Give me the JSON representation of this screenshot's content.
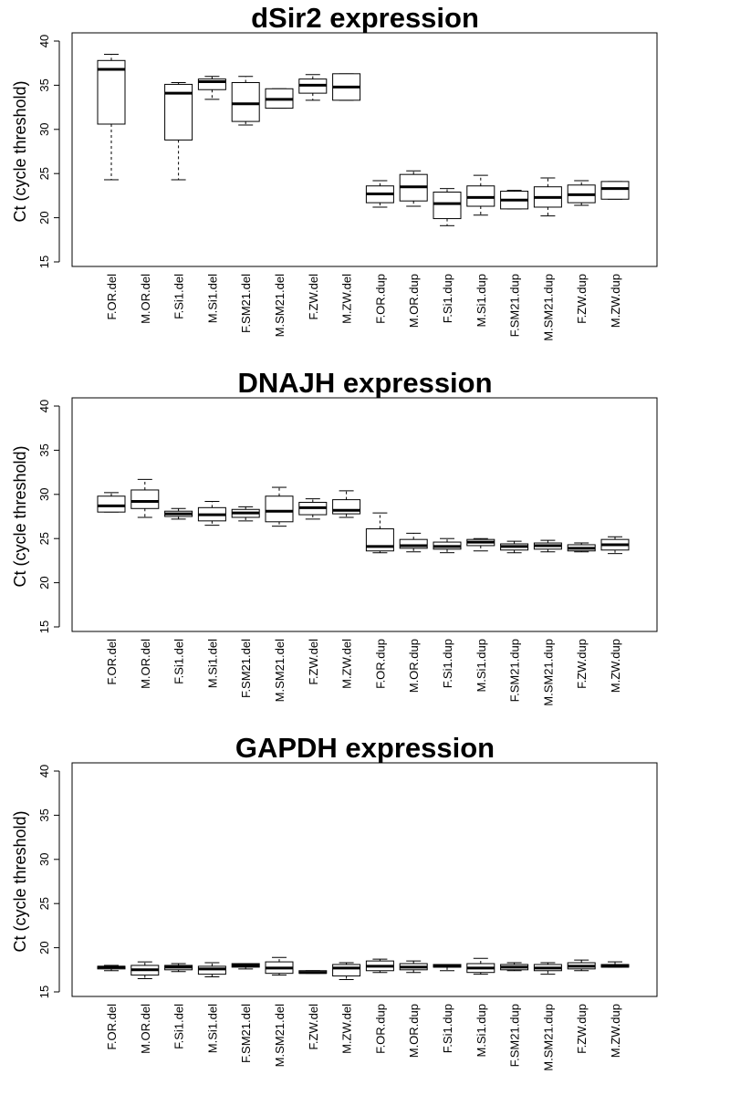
{
  "chart_data": [
    {
      "type": "boxplot",
      "title": "dSir2 expression",
      "ylabel": "Ct (cycle threshold)",
      "xlabel": "",
      "ylim": [
        15,
        40
      ],
      "yticks": [
        15,
        20,
        25,
        30,
        35,
        40
      ],
      "grid": false,
      "categories": [
        "F.OR.del",
        "M.OR.del",
        "F.Si1.del",
        "M.Si1.del",
        "F.SM21.del",
        "M.SM21.del",
        "F.ZW.del",
        "M.ZW.del",
        "F.OR.dup",
        "M.OR.dup",
        "F.Si1.dup",
        "M.Si1.dup",
        "F.SM21.dup",
        "M.SM21.dup",
        "F.ZW.dup",
        "M.ZW.dup"
      ],
      "boxes": [
        {
          "whisker_low": 24.3,
          "q1": 30.6,
          "median": 36.8,
          "q3": 37.8,
          "whisker_high": 38.5
        },
        null,
        {
          "whisker_low": 24.3,
          "q1": 28.8,
          "median": 34.1,
          "q3": 35.1,
          "whisker_high": 35.3
        },
        {
          "whisker_low": 33.4,
          "q1": 34.5,
          "median": 35.4,
          "q3": 35.7,
          "whisker_high": 36.0
        },
        {
          "whisker_low": 30.5,
          "q1": 30.9,
          "median": 32.9,
          "q3": 35.3,
          "whisker_high": 36.0
        },
        {
          "whisker_low": 32.4,
          "q1": 32.4,
          "median": 33.4,
          "q3": 34.6,
          "whisker_high": 34.6
        },
        {
          "whisker_low": 33.3,
          "q1": 34.1,
          "median": 35.0,
          "q3": 35.7,
          "whisker_high": 36.2
        },
        {
          "whisker_low": 33.3,
          "q1": 33.3,
          "median": 34.8,
          "q3": 36.3,
          "whisker_high": 36.3
        },
        {
          "whisker_low": 21.2,
          "q1": 21.7,
          "median": 22.7,
          "q3": 23.6,
          "whisker_high": 24.2
        },
        {
          "whisker_low": 21.3,
          "q1": 21.9,
          "median": 23.5,
          "q3": 24.9,
          "whisker_high": 25.3
        },
        {
          "whisker_low": 19.1,
          "q1": 19.9,
          "median": 21.6,
          "q3": 22.9,
          "whisker_high": 23.3
        },
        {
          "whisker_low": 20.3,
          "q1": 21.3,
          "median": 22.3,
          "q3": 23.6,
          "whisker_high": 24.8
        },
        {
          "whisker_low": 21.0,
          "q1": 21.0,
          "median": 22.0,
          "q3": 23.0,
          "whisker_high": 23.1
        },
        {
          "whisker_low": 20.2,
          "q1": 21.2,
          "median": 22.3,
          "q3": 23.5,
          "whisker_high": 24.5
        },
        {
          "whisker_low": 21.4,
          "q1": 21.7,
          "median": 22.6,
          "q3": 23.7,
          "whisker_high": 24.2
        },
        {
          "whisker_low": 22.1,
          "q1": 22.1,
          "median": 23.3,
          "q3": 24.1,
          "whisker_high": 24.1
        }
      ]
    },
    {
      "type": "boxplot",
      "title": "DNAJH expression",
      "ylabel": "Ct (cycle threshold)",
      "xlabel": "",
      "ylim": [
        15,
        40
      ],
      "yticks": [
        15,
        20,
        25,
        30,
        35,
        40
      ],
      "grid": false,
      "categories": [
        "F.OR.del",
        "M.OR.del",
        "F.Si1.del",
        "M.Si1.del",
        "F.SM21.del",
        "M.SM21.del",
        "F.ZW.del",
        "M.ZW.del",
        "F.OR.dup",
        "M.OR.dup",
        "F.Si1.dup",
        "M.Si1.dup",
        "F.SM21.dup",
        "M.SM21.dup",
        "F.ZW.dup",
        "M.ZW.dup"
      ],
      "boxes": [
        {
          "whisker_low": 28.0,
          "q1": 28.0,
          "median": 28.7,
          "q3": 29.8,
          "whisker_high": 30.2
        },
        {
          "whisker_low": 27.4,
          "q1": 28.4,
          "median": 29.2,
          "q3": 30.5,
          "whisker_high": 31.7
        },
        {
          "whisker_low": 27.2,
          "q1": 27.5,
          "median": 27.8,
          "q3": 28.1,
          "whisker_high": 28.4
        },
        {
          "whisker_low": 26.5,
          "q1": 27.0,
          "median": 27.7,
          "q3": 28.5,
          "whisker_high": 29.2
        },
        {
          "whisker_low": 27.0,
          "q1": 27.4,
          "median": 27.9,
          "q3": 28.3,
          "whisker_high": 28.6
        },
        {
          "whisker_low": 26.4,
          "q1": 26.9,
          "median": 28.1,
          "q3": 29.8,
          "whisker_high": 30.8
        },
        {
          "whisker_low": 27.2,
          "q1": 27.7,
          "median": 28.5,
          "q3": 29.1,
          "whisker_high": 29.5
        },
        {
          "whisker_low": 27.4,
          "q1": 27.8,
          "median": 28.2,
          "q3": 29.4,
          "whisker_high": 30.4
        },
        {
          "whisker_low": 23.4,
          "q1": 23.6,
          "median": 24.1,
          "q3": 26.1,
          "whisker_high": 27.9
        },
        {
          "whisker_low": 23.5,
          "q1": 23.9,
          "median": 24.2,
          "q3": 24.9,
          "whisker_high": 25.6
        },
        {
          "whisker_low": 23.4,
          "q1": 23.8,
          "median": 24.1,
          "q3": 24.6,
          "whisker_high": 25.0
        },
        {
          "whisker_low": 23.6,
          "q1": 24.2,
          "median": 24.6,
          "q3": 24.9,
          "whisker_high": 25.0
        },
        {
          "whisker_low": 23.4,
          "q1": 23.7,
          "median": 24.1,
          "q3": 24.4,
          "whisker_high": 24.7
        },
        {
          "whisker_low": 23.5,
          "q1": 23.8,
          "median": 24.2,
          "q3": 24.5,
          "whisker_high": 24.8
        },
        {
          "whisker_low": 23.5,
          "q1": 23.6,
          "median": 23.9,
          "q3": 24.3,
          "whisker_high": 24.5
        },
        {
          "whisker_low": 23.3,
          "q1": 23.7,
          "median": 24.3,
          "q3": 24.9,
          "whisker_high": 25.2
        }
      ]
    },
    {
      "type": "boxplot",
      "title": "GAPDH expression",
      "ylabel": "Ct (cycle threshold)",
      "xlabel": "",
      "ylim": [
        15,
        40
      ],
      "yticks": [
        15,
        20,
        25,
        30,
        35,
        40
      ],
      "grid": false,
      "categories": [
        "F.OR.del",
        "M.OR.del",
        "F.Si1.del",
        "M.Si1.del",
        "F.SM21.del",
        "M.SM21.del",
        "F.ZW.del",
        "M.ZW.del",
        "F.OR.dup",
        "M.OR.dup",
        "F.Si1.dup",
        "M.Si1.dup",
        "F.SM21.dup",
        "M.SM21.dup",
        "F.ZW.dup",
        "M.ZW.dup"
      ],
      "boxes": [
        {
          "whisker_low": 17.4,
          "q1": 17.6,
          "median": 17.8,
          "q3": 17.9,
          "whisker_high": 18.0
        },
        {
          "whisker_low": 16.5,
          "q1": 16.9,
          "median": 17.5,
          "q3": 18.0,
          "whisker_high": 18.4
        },
        {
          "whisker_low": 17.3,
          "q1": 17.5,
          "median": 17.8,
          "q3": 18.0,
          "whisker_high": 18.2
        },
        {
          "whisker_low": 16.7,
          "q1": 17.0,
          "median": 17.6,
          "q3": 17.9,
          "whisker_high": 18.3
        },
        {
          "whisker_low": 17.6,
          "q1": 17.8,
          "median": 18.0,
          "q3": 18.2,
          "whisker_high": 18.2
        },
        {
          "whisker_low": 16.9,
          "q1": 17.1,
          "median": 17.7,
          "q3": 18.4,
          "whisker_high": 18.9
        },
        {
          "whisker_low": 17.1,
          "q1": 17.1,
          "median": 17.2,
          "q3": 17.4,
          "whisker_high": 17.4
        },
        {
          "whisker_low": 16.4,
          "q1": 16.8,
          "median": 17.7,
          "q3": 18.1,
          "whisker_high": 18.3
        },
        {
          "whisker_low": 17.2,
          "q1": 17.4,
          "median": 17.9,
          "q3": 18.5,
          "whisker_high": 18.7
        },
        {
          "whisker_low": 17.2,
          "q1": 17.5,
          "median": 17.8,
          "q3": 18.2,
          "whisker_high": 18.5
        },
        {
          "whisker_low": 17.4,
          "q1": 17.8,
          "median": 17.9,
          "q3": 18.1,
          "whisker_high": 18.1
        },
        {
          "whisker_low": 17.0,
          "q1": 17.2,
          "median": 17.7,
          "q3": 18.2,
          "whisker_high": 18.8
        },
        {
          "whisker_low": 17.4,
          "q1": 17.5,
          "median": 17.8,
          "q3": 18.1,
          "whisker_high": 18.3
        },
        {
          "whisker_low": 17.0,
          "q1": 17.4,
          "median": 17.7,
          "q3": 18.1,
          "whisker_high": 18.3
        },
        {
          "whisker_low": 17.4,
          "q1": 17.6,
          "median": 17.9,
          "q3": 18.3,
          "whisker_high": 18.6
        },
        {
          "whisker_low": 17.8,
          "q1": 17.8,
          "median": 17.9,
          "q3": 18.1,
          "whisker_high": 18.4
        }
      ]
    }
  ]
}
